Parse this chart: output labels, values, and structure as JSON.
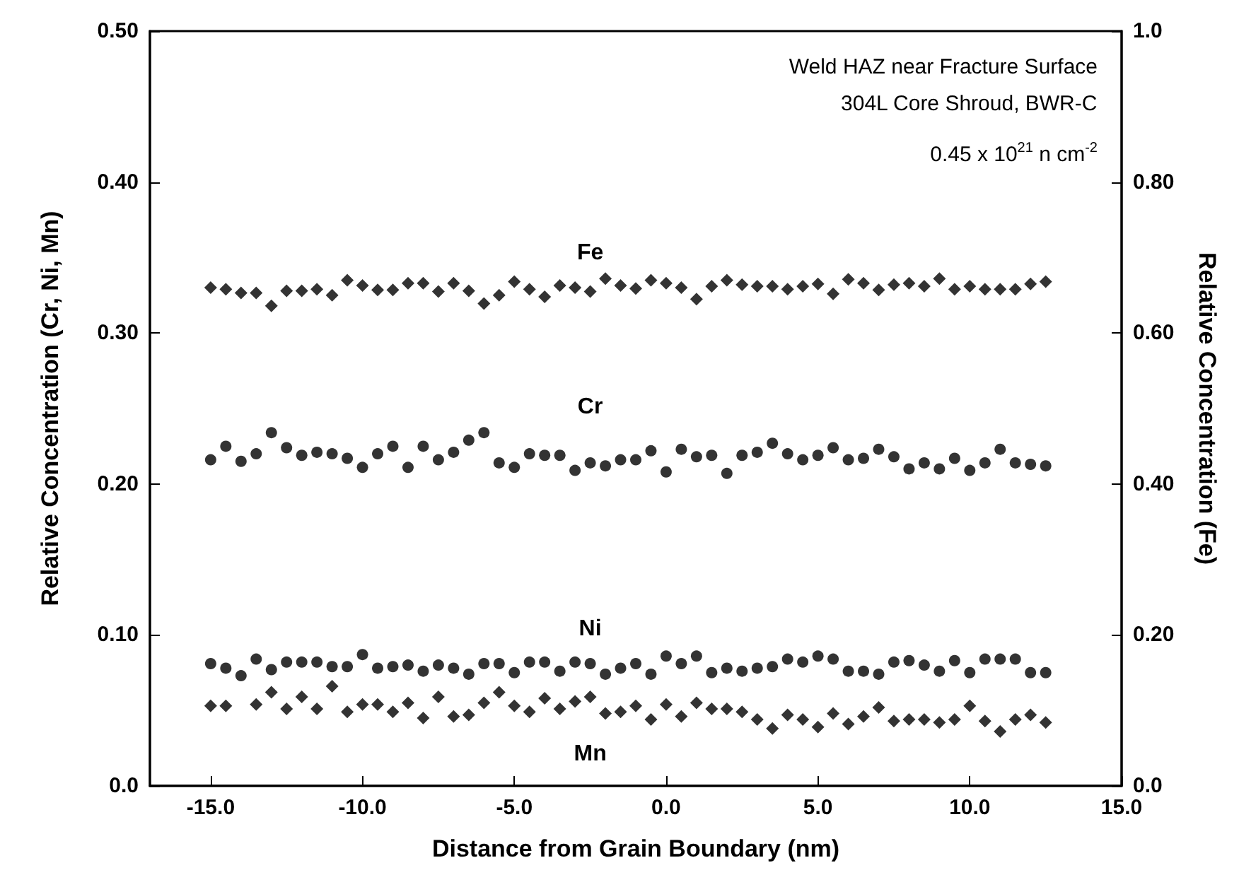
{
  "chart_data": {
    "type": "scatter",
    "xlabel": "Distance from Grain Boundary (nm)",
    "ylabel": "Relative Concentration (Cr, Ni, Mn)",
    "y2label": "Relative Concentration (Fe)",
    "annotations": [
      "Weld HAZ near Fracture Surface",
      "304L Core Shroud, BWR-C",
      "0.45 x 10$^{21}$ n cm$^{-2}$"
    ],
    "x": [
      -15,
      -14.5,
      -14,
      -13.5,
      -13,
      -12.5,
      -12,
      -11.5,
      -11,
      -10.5,
      -10,
      -9.5,
      -9,
      -8.5,
      -8,
      -7.5,
      -7,
      -6.5,
      -6,
      -5.5,
      -5,
      -4.5,
      -4,
      -3.5,
      -3,
      -2.5,
      -2,
      -1.5,
      -1,
      -0.5,
      0,
      0.5,
      1,
      1.5,
      2,
      2.5,
      3,
      3.5,
      4,
      4.5,
      5,
      5.5,
      6,
      6.5,
      7,
      7.5,
      8,
      8.5,
      9,
      9.5,
      10,
      10.5,
      11,
      11.5,
      12,
      12.5
    ],
    "xlim": [
      -17,
      15
    ],
    "xticks": [
      {
        "value": -15,
        "label": "-15.0"
      },
      {
        "value": -10,
        "label": "-10.0"
      },
      {
        "value": -5,
        "label": "-5.0"
      },
      {
        "value": 0,
        "label": "0.0"
      },
      {
        "value": 5,
        "label": "5.0"
      },
      {
        "value": 10,
        "label": "10.0"
      },
      {
        "value": 15,
        "label": "15.0"
      }
    ],
    "ylim": [
      0,
      0.5
    ],
    "yticks": [
      {
        "value": 0,
        "label": "0.0"
      },
      {
        "value": 0.1,
        "label": "0.10"
      },
      {
        "value": 0.2,
        "label": "0.20"
      },
      {
        "value": 0.3,
        "label": "0.30"
      },
      {
        "value": 0.4,
        "label": "0.40"
      },
      {
        "value": 0.5,
        "label": "0.50"
      }
    ],
    "y2lim": [
      0,
      1
    ],
    "y2ticks": [
      {
        "value": 0,
        "label": "0.0"
      },
      {
        "value": 0.2,
        "label": "0.20"
      },
      {
        "value": 0.4,
        "label": "0.40"
      },
      {
        "value": 0.6,
        "label": "0.60"
      },
      {
        "value": 0.8,
        "label": "0.80"
      },
      {
        "value": 1,
        "label": "1.0"
      }
    ],
    "grid": false,
    "legend": false,
    "series": [
      {
        "name": "Fe",
        "axis": "y2",
        "color": "#000000",
        "marker": "diamond",
        "values": [
          0.66,
          0.658,
          0.653,
          0.653,
          0.636,
          0.656,
          0.656,
          0.658,
          0.65,
          0.67,
          0.663,
          0.657,
          0.657,
          0.666,
          0.666,
          0.655,
          0.666,
          0.656,
          0.639,
          0.65,
          0.668,
          0.658,
          0.648,
          0.663,
          0.66,
          0.655,
          0.672,
          0.663,
          0.659,
          0.67,
          0.666,
          0.66,
          0.645,
          0.662,
          0.67,
          0.664,
          0.662,
          0.662,
          0.658,
          0.662,
          0.665,
          0.652,
          0.671,
          0.666,
          0.657,
          0.664,
          0.666,
          0.662,
          0.672,
          0.658,
          0.662,
          0.658,
          0.658,
          0.658,
          0.665,
          0.668
        ]
      },
      {
        "name": "Cr",
        "color": "#000000",
        "marker": "circle",
        "values": [
          0.216,
          0.225,
          0.215,
          0.22,
          0.234,
          0.224,
          0.219,
          0.221,
          0.22,
          0.217,
          0.211,
          0.22,
          0.225,
          0.211,
          0.225,
          0.216,
          0.221,
          0.229,
          0.234,
          0.214,
          0.211,
          0.22,
          0.219,
          0.219,
          0.209,
          0.214,
          0.212,
          0.216,
          0.216,
          0.222,
          0.208,
          0.223,
          0.218,
          0.219,
          0.207,
          0.219,
          0.221,
          0.227,
          0.22,
          0.216,
          0.219,
          0.224,
          0.216,
          0.217,
          0.223,
          0.218,
          0.21,
          0.214,
          0.21,
          0.217,
          0.209,
          0.214,
          0.223,
          0.214,
          0.213,
          0.212
        ]
      },
      {
        "name": "Ni",
        "color": "#000000",
        "marker": "circle",
        "values": [
          0.081,
          0.078,
          0.073,
          0.084,
          0.077,
          0.082,
          0.082,
          0.082,
          0.079,
          0.079,
          0.087,
          0.078,
          0.079,
          0.08,
          0.076,
          0.08,
          0.078,
          0.074,
          0.081,
          0.081,
          0.075,
          0.082,
          0.082,
          0.076,
          0.082,
          0.081,
          0.074,
          0.078,
          0.081,
          0.074,
          0.086,
          0.081,
          0.086,
          0.075,
          0.078,
          0.076,
          0.078,
          0.079,
          0.084,
          0.082,
          0.086,
          0.084,
          0.076,
          0.076,
          0.074,
          0.082,
          0.083,
          0.08,
          0.076,
          0.083,
          0.075,
          0.084,
          0.084,
          0.084,
          0.075,
          0.075
        ]
      },
      {
        "name": "Mn",
        "color": "#000000",
        "marker": "diamond",
        "values": [
          0.053,
          0.053,
          null,
          0.054,
          0.062,
          0.051,
          0.059,
          0.051,
          0.066,
          0.049,
          0.054,
          0.054,
          0.049,
          0.055,
          0.045,
          0.059,
          0.046,
          0.047,
          0.055,
          0.062,
          0.053,
          0.049,
          0.058,
          0.051,
          0.056,
          0.059,
          0.048,
          0.049,
          0.053,
          0.044,
          0.054,
          0.046,
          0.055,
          0.051,
          0.051,
          0.049,
          0.044,
          0.038,
          0.047,
          0.044,
          0.039,
          0.048,
          0.041,
          0.046,
          0.052,
          0.043,
          0.044,
          0.044,
          0.042,
          0.044,
          0.053,
          0.043,
          0.036,
          0.044,
          0.047,
          0.042
        ]
      }
    ]
  }
}
